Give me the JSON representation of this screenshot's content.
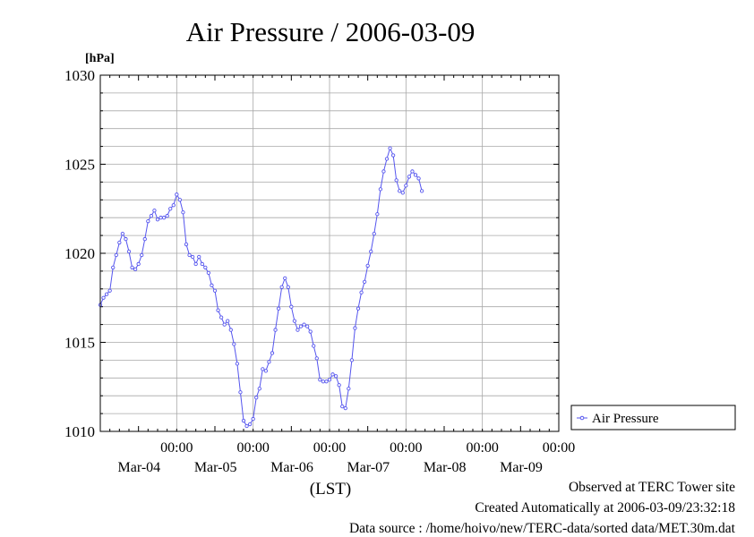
{
  "chart_data": {
    "type": "line",
    "title": "Air Pressure / 2006-03-09",
    "ylabel": "[hPa]",
    "xlabel": "(LST)",
    "ylim": [
      1010,
      1030
    ],
    "yticks": [
      "1010",
      "1015",
      "1020",
      "1025",
      "1030"
    ],
    "x_unit": "hours from 2006-03-03 12:00 LST",
    "xlim": [
      0,
      144
    ],
    "x_ticks": [
      {
        "x": 24,
        "time": "00:00",
        "date": "Mar-04"
      },
      {
        "x": 48,
        "time": "00:00",
        "date": "Mar-05"
      },
      {
        "x": 72,
        "time": "00:00",
        "date": "Mar-06"
      },
      {
        "x": 96,
        "time": "00:00",
        "date": "Mar-07"
      },
      {
        "x": 120,
        "time": "00:00",
        "date": "Mar-08"
      },
      {
        "x": 144,
        "time": "00:00",
        "date": "Mar-09"
      }
    ],
    "grid": true,
    "legend_position": "right",
    "series": [
      {
        "name": "Air Pressure",
        "color": "#5555ee",
        "points": [
          [
            0,
            1017.1
          ],
          [
            1,
            1017.5
          ],
          [
            2,
            1017.7
          ],
          [
            3,
            1017.9
          ],
          [
            4,
            1019.2
          ],
          [
            5,
            1019.9
          ],
          [
            6,
            1020.6
          ],
          [
            7,
            1021.1
          ],
          [
            8,
            1020.8
          ],
          [
            9,
            1020.1
          ],
          [
            10,
            1019.2
          ],
          [
            11,
            1019.1
          ],
          [
            12,
            1019.4
          ],
          [
            13,
            1019.9
          ],
          [
            14,
            1020.8
          ],
          [
            15,
            1021.8
          ],
          [
            16,
            1022.1
          ],
          [
            17,
            1022.4
          ],
          [
            18,
            1021.9
          ],
          [
            19,
            1022.0
          ],
          [
            20,
            1022.0
          ],
          [
            21,
            1022.1
          ],
          [
            22,
            1022.5
          ],
          [
            23,
            1022.7
          ],
          [
            24,
            1023.3
          ],
          [
            25,
            1023.0
          ],
          [
            26,
            1022.3
          ],
          [
            27,
            1020.5
          ],
          [
            28,
            1019.9
          ],
          [
            29,
            1019.8
          ],
          [
            30,
            1019.4
          ],
          [
            31,
            1019.8
          ],
          [
            32,
            1019.4
          ],
          [
            33,
            1019.2
          ],
          [
            34,
            1018.9
          ],
          [
            35,
            1018.2
          ],
          [
            36,
            1017.9
          ],
          [
            37,
            1016.8
          ],
          [
            38,
            1016.4
          ],
          [
            39,
            1016.0
          ],
          [
            40,
            1016.2
          ],
          [
            41,
            1015.7
          ],
          [
            42,
            1014.9
          ],
          [
            43,
            1013.8
          ],
          [
            44,
            1012.2
          ],
          [
            45,
            1010.6
          ],
          [
            46,
            1010.3
          ],
          [
            47,
            1010.4
          ],
          [
            48,
            1010.7
          ],
          [
            49,
            1011.9
          ],
          [
            50,
            1012.4
          ],
          [
            51,
            1013.5
          ],
          [
            52,
            1013.4
          ],
          [
            53,
            1013.9
          ],
          [
            54,
            1014.4
          ],
          [
            55,
            1015.7
          ],
          [
            56,
            1016.9
          ],
          [
            57,
            1018.1
          ],
          [
            58,
            1018.6
          ],
          [
            59,
            1018.1
          ],
          [
            60,
            1017.0
          ],
          [
            61,
            1016.2
          ],
          [
            62,
            1015.7
          ],
          [
            63,
            1015.9
          ],
          [
            64,
            1016.0
          ],
          [
            65,
            1015.9
          ],
          [
            66,
            1015.6
          ],
          [
            67,
            1014.8
          ],
          [
            68,
            1014.1
          ],
          [
            69,
            1012.9
          ],
          [
            70,
            1012.8
          ],
          [
            71,
            1012.8
          ],
          [
            72,
            1012.9
          ],
          [
            73,
            1013.2
          ],
          [
            74,
            1013.1
          ],
          [
            75,
            1012.6
          ],
          [
            76,
            1011.4
          ],
          [
            77,
            1011.3
          ],
          [
            78,
            1012.4
          ],
          [
            79,
            1014.0
          ],
          [
            80,
            1015.8
          ],
          [
            81,
            1016.9
          ],
          [
            82,
            1017.8
          ],
          [
            83,
            1018.4
          ],
          [
            84,
            1019.3
          ],
          [
            85,
            1020.1
          ],
          [
            86,
            1021.1
          ],
          [
            87,
            1022.2
          ],
          [
            88,
            1023.6
          ],
          [
            89,
            1024.6
          ],
          [
            90,
            1025.3
          ],
          [
            91,
            1025.9
          ],
          [
            92,
            1025.5
          ],
          [
            93,
            1024.1
          ],
          [
            94,
            1023.5
          ],
          [
            95,
            1023.4
          ],
          [
            96,
            1023.8
          ],
          [
            97,
            1024.3
          ],
          [
            98,
            1024.6
          ],
          [
            99,
            1024.4
          ],
          [
            100,
            1024.2
          ],
          [
            101,
            1023.5
          ]
        ]
      }
    ],
    "legend": [
      {
        "label": "Air Pressure"
      }
    ]
  },
  "footer": {
    "line1": "Observed at TERC Tower site",
    "line2": "Created Automatically at 2006-03-09/23:32:18",
    "line3": "Data source : /home/hoivo/new/TERC-data/sorted  data/MET.30m.dat"
  }
}
